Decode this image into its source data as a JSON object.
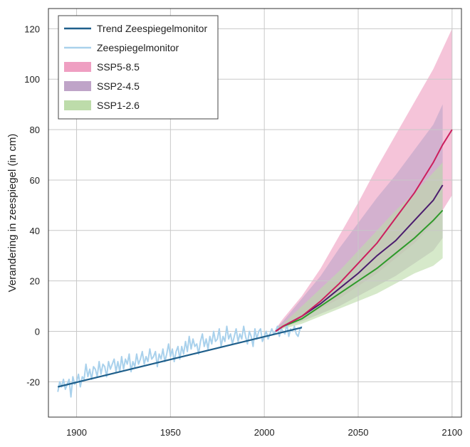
{
  "chart_data": {
    "type": "line",
    "title": "",
    "xlabel": "",
    "ylabel": "Verandering in zeespiegel (in cm)",
    "xlim": [
      1885,
      2105
    ],
    "ylim": [
      -34,
      128
    ],
    "xticks": [
      1900,
      1950,
      2000,
      2050,
      2100
    ],
    "yticks": [
      -20,
      0,
      20,
      40,
      60,
      80,
      100,
      120
    ],
    "grid": true,
    "legend_position": "top-left",
    "legend": [
      {
        "label": "Trend Zeespiegelmonitor",
        "kind": "line",
        "color": "#1f5f8b"
      },
      {
        "label": "Zeespiegelmonitor",
        "kind": "line",
        "color": "#a9d1ec"
      },
      {
        "label": "SSP5-8.5",
        "kind": "band",
        "color": "#ef9fc2"
      },
      {
        "label": "SSP2-4.5",
        "kind": "band",
        "color": "#bfa4c8"
      },
      {
        "label": "SSP1-2.6",
        "kind": "band",
        "color": "#bddcaa"
      }
    ],
    "observations": {
      "color": "#a9d1ec",
      "x": [
        1890,
        1891,
        1892,
        1893,
        1894,
        1895,
        1896,
        1897,
        1898,
        1899,
        1900,
        1901,
        1902,
        1903,
        1904,
        1905,
        1906,
        1907,
        1908,
        1909,
        1910,
        1911,
        1912,
        1913,
        1914,
        1915,
        1916,
        1917,
        1918,
        1919,
        1920,
        1921,
        1922,
        1923,
        1924,
        1925,
        1926,
        1927,
        1928,
        1929,
        1930,
        1931,
        1932,
        1933,
        1934,
        1935,
        1936,
        1937,
        1938,
        1939,
        1940,
        1941,
        1942,
        1943,
        1944,
        1945,
        1946,
        1947,
        1948,
        1949,
        1950,
        1951,
        1952,
        1953,
        1954,
        1955,
        1956,
        1957,
        1958,
        1959,
        1960,
        1961,
        1962,
        1963,
        1964,
        1965,
        1966,
        1967,
        1968,
        1969,
        1970,
        1971,
        1972,
        1973,
        1974,
        1975,
        1976,
        1977,
        1978,
        1979,
        1980,
        1981,
        1982,
        1983,
        1984,
        1985,
        1986,
        1987,
        1988,
        1989,
        1990,
        1991,
        1992,
        1993,
        1994,
        1995,
        1996,
        1997,
        1998,
        1999,
        2000,
        2001,
        2002,
        2003,
        2004,
        2005,
        2006,
        2007,
        2008,
        2009,
        2010,
        2011,
        2012,
        2013,
        2014,
        2015,
        2016,
        2017,
        2018,
        2019,
        2020
      ],
      "y": [
        -24,
        -20,
        -22,
        -19,
        -23,
        -21,
        -19,
        -26,
        -18,
        -21,
        -20,
        -17,
        -22,
        -18,
        -19,
        -13,
        -18,
        -15,
        -19,
        -14,
        -15,
        -18,
        -12,
        -17,
        -13,
        -14,
        -18,
        -12,
        -15,
        -13,
        -11,
        -16,
        -12,
        -16,
        -10,
        -15,
        -11,
        -13,
        -9,
        -16,
        -12,
        -14,
        -9,
        -13,
        -11,
        -8,
        -13,
        -10,
        -12,
        -7,
        -11,
        -10,
        -8,
        -14,
        -9,
        -11,
        -7,
        -12,
        -9,
        -5,
        -10,
        -7,
        -12,
        -8,
        -6,
        -11,
        -6,
        -9,
        -4,
        -8,
        -2,
        -7,
        -3,
        -6,
        -5,
        -9,
        -4,
        -1,
        -6,
        -3,
        -7,
        -2,
        -5,
        0,
        -4,
        -3,
        1,
        -6,
        -2,
        -4,
        2,
        -3,
        -1,
        -5,
        -2,
        1,
        -4,
        -1,
        -3,
        2,
        -2,
        -5,
        0,
        -2,
        -6,
        1,
        -3,
        0,
        1,
        -4,
        -2,
        0,
        -3,
        -1,
        1,
        -1,
        0,
        2,
        -2,
        1,
        0,
        -1,
        3,
        -2,
        1,
        0,
        2,
        -1,
        -2,
        1,
        2
      ]
    },
    "trend": {
      "color": "#1f5f8b",
      "x": [
        1890,
        2020
      ],
      "y": [
        -22,
        1.5
      ]
    },
    "scenarios": [
      {
        "name": "SSP5-8.5",
        "band_color": "#ef9fc2",
        "line_color": "#cc1f5e",
        "x": [
          2006,
          2010,
          2020,
          2030,
          2040,
          2050,
          2060,
          2070,
          2080,
          2090,
          2095,
          2100
        ],
        "low": [
          0,
          1.5,
          5,
          9,
          13,
          18,
          23,
          29,
          35,
          43,
          48,
          54
        ],
        "high": [
          1,
          5,
          14,
          25,
          38,
          51,
          65,
          78,
          91,
          104,
          112,
          120
        ],
        "median": [
          0,
          2,
          6,
          12,
          19,
          27,
          35,
          45,
          55,
          67,
          74,
          80
        ]
      },
      {
        "name": "SSP2-4.5",
        "band_color": "#bfa4c8",
        "line_color": "#4b1c6e",
        "x": [
          2006,
          2010,
          2020,
          2030,
          2040,
          2050,
          2060,
          2070,
          2080,
          2090,
          2095
        ],
        "low": [
          0,
          1.5,
          4,
          7,
          10,
          14,
          18,
          22,
          27,
          32,
          37
        ],
        "high": [
          1,
          4,
          13,
          22,
          33,
          43,
          53,
          62,
          72,
          82,
          90
        ],
        "median": [
          0,
          2,
          6,
          11,
          17,
          23,
          30,
          36,
          44,
          52,
          58
        ]
      },
      {
        "name": "SSP1-2.6",
        "band_color": "#bddcaa",
        "line_color": "#2e9a2a",
        "x": [
          2006,
          2010,
          2020,
          2030,
          2040,
          2050,
          2060,
          2070,
          2080,
          2090,
          2095
        ],
        "low": [
          0,
          1,
          3,
          6,
          9,
          12,
          15,
          19,
          23,
          26,
          29
        ],
        "high": [
          1,
          3,
          10,
          17,
          24,
          32,
          40,
          48,
          55,
          63,
          67
        ],
        "median": [
          0,
          2,
          5,
          10,
          15,
          20,
          25,
          31,
          37,
          44,
          48
        ]
      }
    ]
  }
}
